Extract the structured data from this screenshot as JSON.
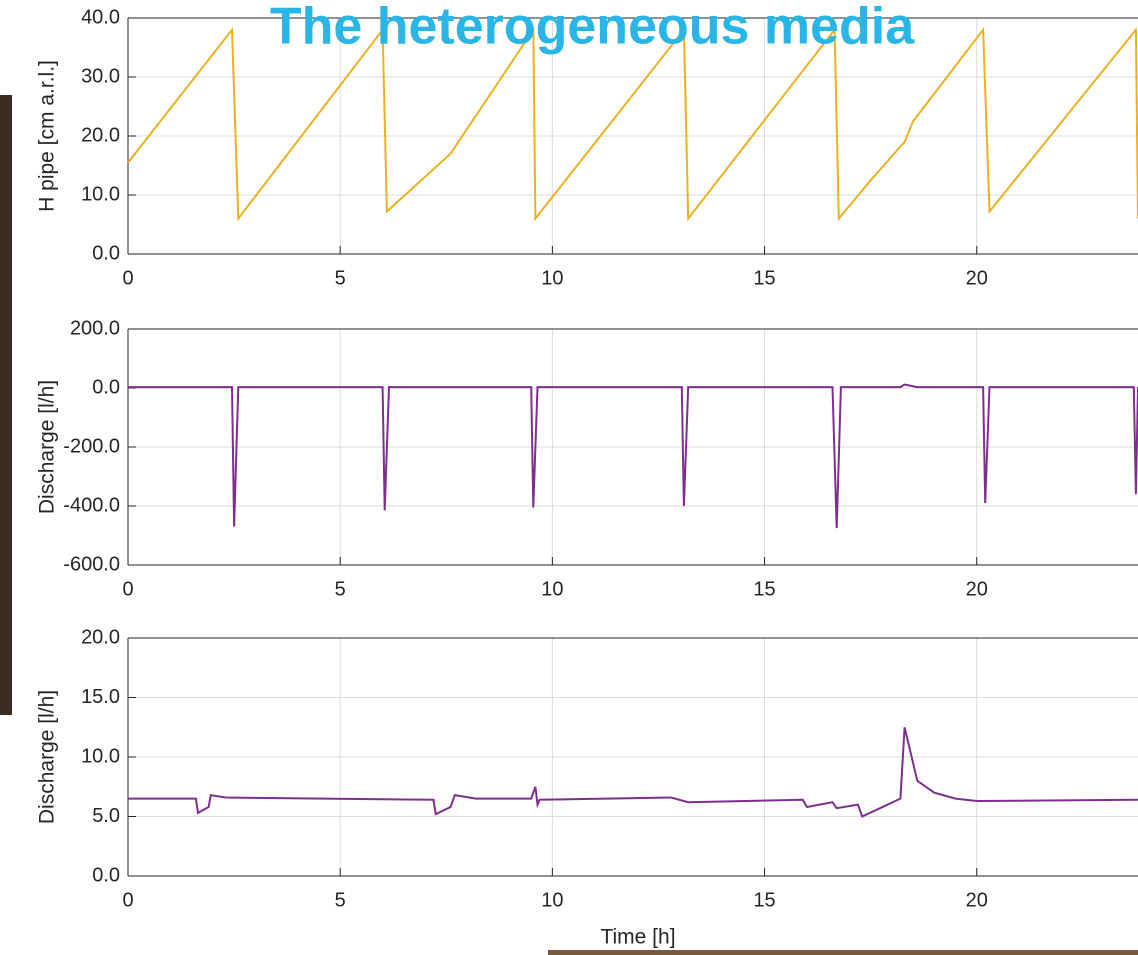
{
  "chart_data": [
    {
      "type": "line",
      "title": "The heterogeneous media",
      "ylabel": "H pipe [cm a.r.l.]",
      "x": [
        0,
        2.45,
        2.6,
        6.0,
        6.1,
        7.6,
        9.55,
        9.6,
        13.1,
        13.2,
        16.65,
        16.75,
        17.5,
        18.3,
        18.5,
        20.15,
        20.3,
        23.75,
        23.8
      ],
      "series": [
        {
          "color": "#edb120",
          "values": [
            15.5,
            38,
            6,
            38,
            7.2,
            17,
            38,
            6,
            38,
            6,
            38,
            6,
            12.5,
            19,
            22.5,
            38,
            7.2,
            38,
            6
          ]
        }
      ],
      "xlim": [
        0,
        23.8
      ],
      "ylim": [
        0,
        40
      ],
      "xticks": [
        0,
        5,
        10,
        15,
        20
      ],
      "yticks": [
        {
          "value": 0,
          "label": "0.0"
        },
        {
          "value": 10,
          "label": "10.0"
        },
        {
          "value": 20,
          "label": "20.0"
        },
        {
          "value": 30,
          "label": "30.0"
        },
        {
          "value": 40,
          "label": "40.0"
        }
      ],
      "grid": true
    },
    {
      "type": "line",
      "ylabel": "Discharge [l/h]",
      "x": [
        0,
        2.45,
        2.5,
        2.6,
        6.0,
        6.05,
        6.15,
        9.5,
        9.55,
        9.65,
        13.05,
        13.1,
        13.2,
        16.6,
        16.7,
        16.8,
        18.2,
        18.3,
        18.6,
        20.15,
        20.2,
        20.3,
        23.7,
        23.75,
        23.8
      ],
      "series": [
        {
          "color": "#7e2f8e",
          "values": [
            3,
            3,
            -470,
            3,
            3,
            -415,
            3,
            3,
            -405,
            3,
            3,
            -400,
            3,
            3,
            -475,
            3,
            3,
            12,
            3,
            3,
            -390,
            3,
            3,
            -360,
            3
          ]
        }
      ],
      "xlim": [
        0,
        23.8
      ],
      "ylim": [
        -600,
        200
      ],
      "xticks": [
        0,
        5,
        10,
        15,
        20
      ],
      "yticks": [
        {
          "value": -600,
          "label": "-600.0"
        },
        {
          "value": -400,
          "label": "-400.0"
        },
        {
          "value": -200,
          "label": "-200.0"
        },
        {
          "value": 0,
          "label": "0.0"
        },
        {
          "value": 200,
          "label": "200.0"
        }
      ],
      "grid": true
    },
    {
      "type": "line",
      "ylabel": "Discharge [l/h]",
      "xlabel": "Time [h]",
      "x": [
        0,
        1.6,
        1.65,
        1.9,
        1.95,
        2.3,
        7.2,
        7.25,
        7.6,
        7.7,
        8.2,
        9.5,
        9.6,
        9.65,
        9.7,
        12.8,
        13.2,
        15.9,
        16.0,
        16.6,
        16.7,
        17.2,
        17.3,
        18.2,
        18.3,
        18.6,
        19.0,
        19.5,
        20.0,
        23.8
      ],
      "series": [
        {
          "color": "#7e2f8e",
          "values": [
            6.5,
            6.5,
            5.3,
            5.8,
            6.8,
            6.6,
            6.4,
            5.2,
            5.8,
            6.8,
            6.5,
            6.5,
            7.5,
            6.0,
            6.4,
            6.6,
            6.2,
            6.4,
            5.8,
            6.2,
            5.7,
            6.0,
            5.0,
            6.5,
            12.5,
            8.0,
            7.0,
            6.5,
            6.3,
            6.4
          ]
        }
      ],
      "xlim": [
        0,
        23.8
      ],
      "ylim": [
        0,
        20
      ],
      "xticks": [
        0,
        5,
        10,
        15,
        20
      ],
      "yticks": [
        {
          "value": 0,
          "label": "0.0"
        },
        {
          "value": 5,
          "label": "5.0"
        },
        {
          "value": 10,
          "label": "10.0"
        },
        {
          "value": 15,
          "label": "15.0"
        },
        {
          "value": 20,
          "label": "20.0"
        }
      ],
      "grid": true
    }
  ]
}
